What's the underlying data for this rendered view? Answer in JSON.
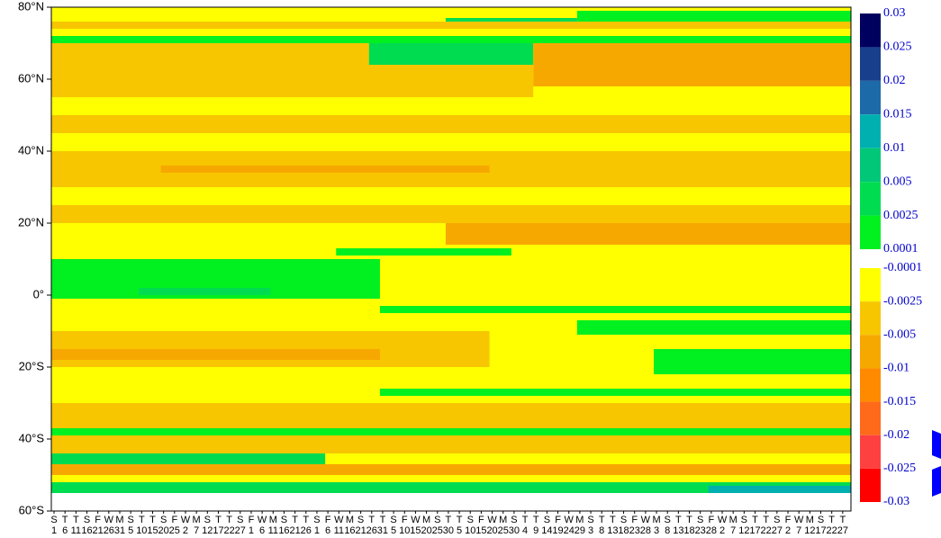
{
  "chart_data": {
    "type": "contour",
    "yticks": [
      {
        "value": 80,
        "label": "80°N"
      },
      {
        "value": 60,
        "label": "60°N"
      },
      {
        "value": 40,
        "label": "40°N"
      },
      {
        "value": 20,
        "label": "20°N"
      },
      {
        "value": 0,
        "label": "0°"
      },
      {
        "value": -20,
        "label": "20°S"
      },
      {
        "value": -40,
        "label": "40°S"
      },
      {
        "value": -60,
        "label": "60°S"
      }
    ],
    "ylim": [
      80,
      -60
    ],
    "weekdays": [
      "S",
      "T",
      "T",
      "S",
      "F",
      "W",
      "M",
      "S",
      "T",
      "T",
      "S",
      "F",
      "W",
      "M",
      "S",
      "T",
      "T",
      "S",
      "F",
      "W",
      "M",
      "S",
      "T",
      "T",
      "S",
      "F",
      "W",
      "M",
      "S",
      "T",
      "T",
      "S",
      "F",
      "W",
      "M",
      "S",
      "T",
      "T",
      "S",
      "F",
      "W",
      "M",
      "S",
      "T",
      "T",
      "S",
      "F",
      "W",
      "M",
      "S",
      "T",
      "T",
      "S",
      "F",
      "W",
      "M",
      "S",
      "T",
      "T",
      "S",
      "F",
      "W",
      "M",
      "S",
      "T",
      "T",
      "S",
      "F",
      "W",
      "M",
      "S",
      "T",
      "T"
    ],
    "days": [
      1,
      6,
      11,
      16,
      21,
      26,
      31,
      5,
      10,
      15,
      20,
      25,
      2,
      7,
      12,
      17,
      22,
      27,
      1,
      6,
      11,
      16,
      21,
      26,
      1,
      6,
      11,
      16,
      21,
      26,
      31,
      5,
      10,
      15,
      20,
      25,
      30,
      5,
      10,
      15,
      20,
      25,
      30,
      4,
      9,
      14,
      19,
      24,
      29,
      3,
      8,
      13,
      18,
      23,
      28,
      3,
      8,
      13,
      18,
      23,
      28,
      2,
      7,
      12,
      17,
      22,
      27,
      2,
      7,
      12,
      17,
      22,
      27
    ],
    "highlight": {
      "color": "#ff0000",
      "indices": [
        3,
        10,
        17,
        24,
        31,
        38,
        45,
        52,
        59,
        66
      ]
    },
    "colorbar": {
      "positive": {
        "levels": [
          0.03,
          0.025,
          0.02,
          0.015,
          0.01,
          0.005,
          0.0025,
          0.0001
        ],
        "colors": [
          "#00005e",
          "#173f8c",
          "#1c6aa8",
          "#00b0b0",
          "#00c878",
          "#00dc50",
          "#00f020"
        ]
      },
      "negative": {
        "levels": [
          -0.0001,
          -0.0025,
          -0.005,
          -0.01,
          -0.015,
          -0.02,
          -0.025,
          -0.03
        ],
        "colors": [
          "#ffff00",
          "#f7c600",
          "#f7a800",
          "#ff8a00",
          "#ff6a1a",
          "#ff4040",
          "#ff0000"
        ]
      }
    },
    "patches": [
      {
        "lat": [
          80,
          -55
        ],
        "t": [
          0,
          73
        ],
        "value": -0.001
      },
      {
        "lat": [
          79,
          76
        ],
        "t": [
          48,
          73
        ],
        "value": 0.001
      },
      {
        "lat": [
          77,
          75
        ],
        "t": [
          36,
          48
        ],
        "value": 0.004
      },
      {
        "lat": [
          76,
          74
        ],
        "t": [
          0,
          73
        ],
        "value": -0.003
      },
      {
        "lat": [
          72,
          70
        ],
        "t": [
          0,
          73
        ],
        "value": 0.001
      },
      {
        "lat": [
          70,
          64
        ],
        "t": [
          0,
          29
        ],
        "value": -0.003
      },
      {
        "lat": [
          70,
          64
        ],
        "t": [
          29,
          44
        ],
        "value": 0.004
      },
      {
        "lat": [
          70,
          58
        ],
        "t": [
          44,
          73
        ],
        "value": -0.007
      },
      {
        "lat": [
          64,
          55
        ],
        "t": [
          0,
          44
        ],
        "value": -0.003
      },
      {
        "lat": [
          50,
          45
        ],
        "t": [
          0,
          73
        ],
        "value": -0.003
      },
      {
        "lat": [
          40,
          30
        ],
        "t": [
          0,
          73
        ],
        "value": -0.003
      },
      {
        "lat": [
          36,
          34
        ],
        "t": [
          10,
          40
        ],
        "value": -0.007
      },
      {
        "lat": [
          25,
          20
        ],
        "t": [
          0,
          73
        ],
        "value": -0.003
      },
      {
        "lat": [
          20,
          14
        ],
        "t": [
          36,
          73
        ],
        "value": -0.007
      },
      {
        "lat": [
          13,
          11
        ],
        "t": [
          26,
          42
        ],
        "value": 0.001
      },
      {
        "lat": [
          10,
          -1
        ],
        "t": [
          0,
          30
        ],
        "value": 0.001
      },
      {
        "lat": [
          2,
          0
        ],
        "t": [
          8,
          20
        ],
        "value": 0.004
      },
      {
        "lat": [
          -3,
          -5
        ],
        "t": [
          30,
          73
        ],
        "value": 0.001
      },
      {
        "lat": [
          -7,
          -11
        ],
        "t": [
          48,
          73
        ],
        "value": 0.001
      },
      {
        "lat": [
          -10,
          -20
        ],
        "t": [
          0,
          40
        ],
        "value": -0.003
      },
      {
        "lat": [
          -15,
          -18
        ],
        "t": [
          0,
          30
        ],
        "value": -0.007
      },
      {
        "lat": [
          -15,
          -22
        ],
        "t": [
          55,
          73
        ],
        "value": 0.001
      },
      {
        "lat": [
          -26,
          -28
        ],
        "t": [
          30,
          73
        ],
        "value": 0.001
      },
      {
        "lat": [
          -30,
          -37
        ],
        "t": [
          0,
          73
        ],
        "value": -0.003
      },
      {
        "lat": [
          -37,
          -39
        ],
        "t": [
          0,
          73
        ],
        "value": 0.001
      },
      {
        "lat": [
          -39,
          -44
        ],
        "t": [
          0,
          73
        ],
        "value": -0.003
      },
      {
        "lat": [
          -44,
          -47
        ],
        "t": [
          0,
          25
        ],
        "value": 0.004
      },
      {
        "lat": [
          -47,
          -50
        ],
        "t": [
          0,
          73
        ],
        "value": -0.007
      },
      {
        "lat": [
          -52,
          -55
        ],
        "t": [
          0,
          73
        ],
        "value": 0.004
      },
      {
        "lat": [
          -53,
          -55
        ],
        "t": [
          60,
          73
        ],
        "value": 0.012
      }
    ]
  }
}
